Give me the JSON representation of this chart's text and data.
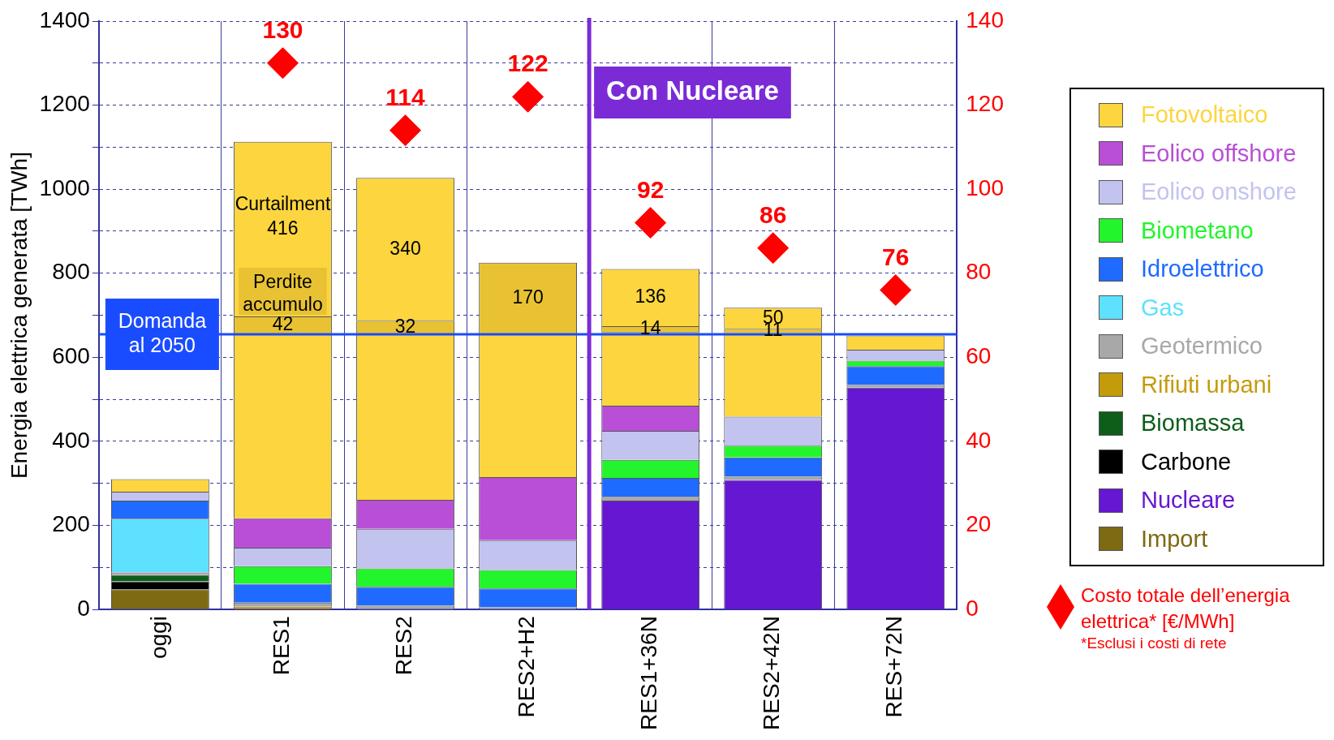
{
  "chart_data": {
    "type": "bar",
    "stacked": true,
    "ylabel": "Energia elettrica generata [TWh]",
    "categories": [
      "oggi",
      "RES1",
      "RES2",
      "RES2+H2",
      "RES1+36N",
      "RES2+42N",
      "RES+72N"
    ],
    "ylim": [
      0,
      1400
    ],
    "yticks": [
      0,
      {
        "value": 100,
        "label": null
      },
      200,
      {
        "value": 300,
        "label": null
      },
      400,
      {
        "value": 500,
        "label": null
      },
      600,
      {
        "value": 700,
        "label": null
      },
      800,
      {
        "value": 900,
        "label": null
      },
      1000,
      {
        "value": 1100,
        "label": null
      },
      1200,
      {
        "value": 1300,
        "label": null
      },
      1400
    ],
    "y2lim": [
      0,
      140
    ],
    "y2ticks": [
      0,
      20,
      40,
      60,
      80,
      100,
      120,
      140
    ],
    "grid": true,
    "legend": "right",
    "series": [
      {
        "name": "Import",
        "color": "#7d6a13",
        "values": [
          48,
          null,
          null,
          null,
          null,
          null,
          null
        ]
      },
      {
        "name": "Nucleare",
        "color": "#6617d1",
        "values": [
          null,
          null,
          null,
          null,
          259,
          308,
          528
        ]
      },
      {
        "name": "Carbone",
        "color": "#000000",
        "values": [
          19,
          null,
          null,
          null,
          null,
          null,
          null
        ]
      },
      {
        "name": "Biomassa",
        "color": "#0e5e1a",
        "values": [
          15,
          null,
          null,
          null,
          null,
          null,
          null
        ]
      },
      {
        "name": "Rifiuti urbani",
        "color": "#c49b0b",
        "values": [
          null,
          7,
          null,
          null,
          null,
          null,
          null
        ]
      },
      {
        "name": "Geotermico",
        "color": "#a8a8a8",
        "values": [
          6,
          9,
          9,
          5,
          9,
          8,
          6
        ]
      },
      {
        "name": "Gas",
        "color": "#5de1ff",
        "values": [
          128,
          null,
          null,
          null,
          null,
          null,
          null
        ]
      },
      {
        "name": "Idroelettrico",
        "color": "#1f6bff",
        "values": [
          43,
          45,
          45,
          45,
          45,
          46,
          45
        ]
      },
      {
        "name": "Biometano",
        "color": "#22f52b",
        "values": [
          null,
          42,
          44,
          44,
          43,
          28,
          13
        ]
      },
      {
        "name": "Eolico onshore",
        "color": "#c3c3f0",
        "values": [
          21,
          44,
          94,
          71,
          69,
          69,
          26
        ]
      },
      {
        "name": "Eolico offshore",
        "color": "#b84fd6",
        "values": [
          null,
          70,
          69,
          150,
          60,
          null,
          null
        ]
      },
      {
        "name": "Fotovoltaico",
        "color": "#fcd53f",
        "values": [
          30,
          438,
          394,
          340,
          175,
          198,
          34
        ]
      },
      {
        "name": "Perdite accumulo",
        "color": "#e8c233",
        "values": [
          null,
          42,
          32,
          170,
          14,
          11,
          null
        ],
        "value_labels": [
          null,
          "42",
          "32",
          "170",
          "14",
          "11",
          null
        ]
      },
      {
        "name": "Curtailment",
        "color": "#fcd53f",
        "values": [
          null,
          416,
          340,
          null,
          136,
          50,
          null
        ],
        "value_labels": [
          null,
          "416",
          "340",
          null,
          "136",
          "50",
          null
        ]
      },
      {
        "name": "Costo totale dell’energia elettrica* [€/MWh]",
        "type": "scatter",
        "axis": "y2",
        "marker": "diamond",
        "color": "#ff0000",
        "values": [
          null,
          130,
          114,
          122,
          92,
          86,
          76
        ],
        "value_labels": [
          null,
          "130",
          "114",
          "122",
          "92",
          "86",
          "76"
        ]
      }
    ],
    "ref_lines": [
      {
        "axis": "y",
        "value": 655,
        "label": "Domanda al 2050",
        "color": "#1a4cff"
      },
      {
        "axis": "x",
        "value": "RES1+36N",
        "label": "Con Nucleare",
        "color": "#7b2bd6"
      }
    ],
    "annotations": [
      "*Esclusi i costi di rete"
    ]
  }
}
